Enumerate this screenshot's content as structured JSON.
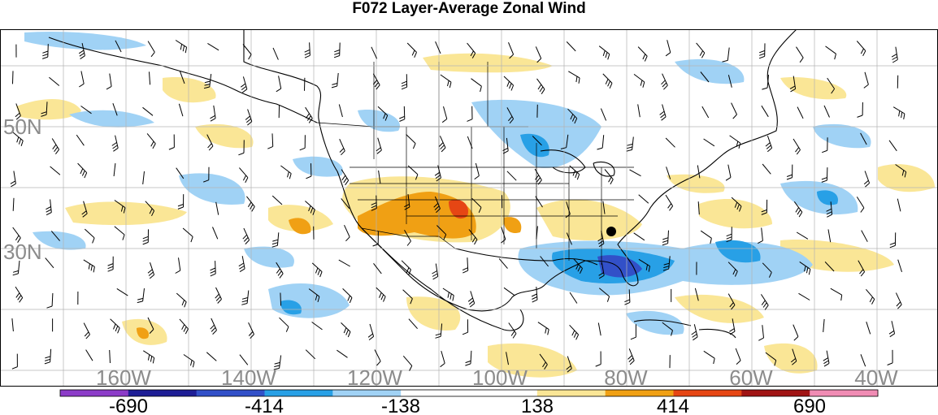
{
  "title": "F072 Layer-Average Zonal Wind",
  "map": {
    "lat_labels": [
      "50N",
      "30N"
    ],
    "lon_labels": [
      "160W",
      "140W",
      "120W",
      "100W",
      "80W",
      "60W",
      "40W"
    ],
    "label_color": "#8c8c8c",
    "grid_color": "#b4b4b4",
    "positive_anomaly_regions": [
      "Southwest US / Four Corners",
      "Mexico Pacific coast",
      "off US East Coast"
    ],
    "negative_anomaly_regions": [
      "Florida / Gulf of Mexico",
      "Great Lakes",
      "Central Atlantic"
    ],
    "markers": [
      "storm-center-dot"
    ]
  },
  "colorbar": {
    "colors": [
      "#8c3cc8",
      "#1e1e96",
      "#3250c8",
      "#28a0e6",
      "#a0d2f5",
      "#ffffff",
      "#ffffff",
      "#fae696",
      "#f0a014",
      "#e64614",
      "#a01414",
      "#f08cb4"
    ],
    "labels": [
      "-690",
      "-414",
      "-138",
      "138",
      "414",
      "690"
    ]
  }
}
